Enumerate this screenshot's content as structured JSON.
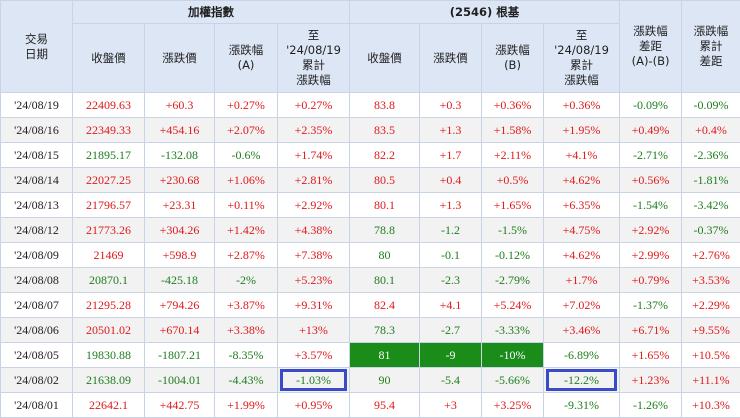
{
  "header": {
    "date_label_1": "交易",
    "date_label_2": "日期",
    "index_group": "加權指數",
    "root_group": "(2546) 根基",
    "close": "收盤價",
    "change": "漲跌價",
    "pct_a_1": "漲跌幅",
    "pct_a_2": "(A)",
    "pct_b_1": "漲跌幅",
    "pct_b_2": "(B)",
    "cum_1": "至",
    "cum_2": "'24/08/19",
    "cum_3": "累計",
    "cum_4": "漲跌幅",
    "diff_1": "漲跌幅",
    "diff_2": "差距",
    "diff_3": "(A)-(B)",
    "cumdiff_1": "漲跌幅",
    "cumdiff_2": "累計",
    "cumdiff_3": "差距"
  },
  "rows": [
    {
      "date": "'24/08/19",
      "idx_close": "22409.63",
      "idx_chg": "+60.3",
      "idx_pct": "+0.27%",
      "idx_cum": "+0.27%",
      "stk_close": "83.8",
      "stk_chg": "+0.3",
      "stk_pct": "+0.36%",
      "stk_cum": "+0.36%",
      "diff": "-0.09%",
      "cum_diff": "-0.09%"
    },
    {
      "date": "'24/08/16",
      "idx_close": "22349.33",
      "idx_chg": "+454.16",
      "idx_pct": "+2.07%",
      "idx_cum": "+2.35%",
      "stk_close": "83.5",
      "stk_chg": "+1.3",
      "stk_pct": "+1.58%",
      "stk_cum": "+1.95%",
      "diff": "+0.49%",
      "cum_diff": "+0.4%"
    },
    {
      "date": "'24/08/15",
      "idx_close": "21895.17",
      "idx_chg": "-132.08",
      "idx_pct": "-0.6%",
      "idx_cum": "+1.74%",
      "stk_close": "82.2",
      "stk_chg": "+1.7",
      "stk_pct": "+2.11%",
      "stk_cum": "+4.1%",
      "diff": "-2.71%",
      "cum_diff": "-2.36%"
    },
    {
      "date": "'24/08/14",
      "idx_close": "22027.25",
      "idx_chg": "+230.68",
      "idx_pct": "+1.06%",
      "idx_cum": "+2.81%",
      "stk_close": "80.5",
      "stk_chg": "+0.4",
      "stk_pct": "+0.5%",
      "stk_cum": "+4.62%",
      "diff": "+0.56%",
      "cum_diff": "-1.81%"
    },
    {
      "date": "'24/08/13",
      "idx_close": "21796.57",
      "idx_chg": "+23.31",
      "idx_pct": "+0.11%",
      "idx_cum": "+2.92%",
      "stk_close": "80.1",
      "stk_chg": "+1.3",
      "stk_pct": "+1.65%",
      "stk_cum": "+6.35%",
      "diff": "-1.54%",
      "cum_diff": "-3.42%"
    },
    {
      "date": "'24/08/12",
      "idx_close": "21773.26",
      "idx_chg": "+304.26",
      "idx_pct": "+1.42%",
      "idx_cum": "+4.38%",
      "stk_close": "78.8",
      "stk_chg": "-1.2",
      "stk_pct": "-1.5%",
      "stk_cum": "+4.75%",
      "diff": "+2.92%",
      "cum_diff": "-0.37%"
    },
    {
      "date": "'24/08/09",
      "idx_close": "21469",
      "idx_chg": "+598.9",
      "idx_pct": "+2.87%",
      "idx_cum": "+7.38%",
      "stk_close": "80",
      "stk_chg": "-0.1",
      "stk_pct": "-0.12%",
      "stk_cum": "+4.62%",
      "diff": "+2.99%",
      "cum_diff": "+2.76%"
    },
    {
      "date": "'24/08/08",
      "idx_close": "20870.1",
      "idx_chg": "-425.18",
      "idx_pct": "-2%",
      "idx_cum": "+5.23%",
      "stk_close": "80.1",
      "stk_chg": "-2.3",
      "stk_pct": "-2.79%",
      "stk_cum": "+1.7%",
      "diff": "+0.79%",
      "cum_diff": "+3.53%"
    },
    {
      "date": "'24/08/07",
      "idx_close": "21295.28",
      "idx_chg": "+794.26",
      "idx_pct": "+3.87%",
      "idx_cum": "+9.31%",
      "stk_close": "82.4",
      "stk_chg": "+4.1",
      "stk_pct": "+5.24%",
      "stk_cum": "+7.02%",
      "diff": "-1.37%",
      "cum_diff": "+2.29%"
    },
    {
      "date": "'24/08/06",
      "idx_close": "20501.02",
      "idx_chg": "+670.14",
      "idx_pct": "+3.38%",
      "idx_cum": "+13%",
      "stk_close": "78.3",
      "stk_chg": "-2.7",
      "stk_pct": "-3.33%",
      "stk_cum": "+3.46%",
      "diff": "+6.71%",
      "cum_diff": "+9.55%"
    },
    {
      "date": "'24/08/05",
      "idx_close": "19830.88",
      "idx_chg": "-1807.21",
      "idx_pct": "-8.35%",
      "idx_cum": "+3.57%",
      "stk_close": "81",
      "stk_chg": "-9",
      "stk_pct": "-10%",
      "stk_cum": "-6.89%",
      "diff": "+1.65%",
      "cum_diff": "+10.5%"
    },
    {
      "date": "'24/08/02",
      "idx_close": "21638.09",
      "idx_chg": "-1004.01",
      "idx_pct": "-4.43%",
      "idx_cum": "-1.03%",
      "stk_close": "90",
      "stk_chg": "-5.4",
      "stk_pct": "-5.66%",
      "stk_cum": "-12.2%",
      "diff": "+1.23%",
      "cum_diff": "+11.1%"
    },
    {
      "date": "'24/08/01",
      "idx_close": "22642.1",
      "idx_chg": "+442.75",
      "idx_pct": "+1.99%",
      "idx_cum": "+0.95%",
      "stk_close": "95.4",
      "stk_chg": "+3",
      "stk_pct": "+3.25%",
      "stk_cum": "-9.31%",
      "diff": "-1.26%",
      "cum_diff": "+10.3%"
    }
  ],
  "colors": {
    "up": "#e0191b",
    "down": "#1e7d1e",
    "header_bg": "#dde6f5",
    "limit_down_bg": "#1a8c1a",
    "highlight_box": "#3a4bc8"
  }
}
